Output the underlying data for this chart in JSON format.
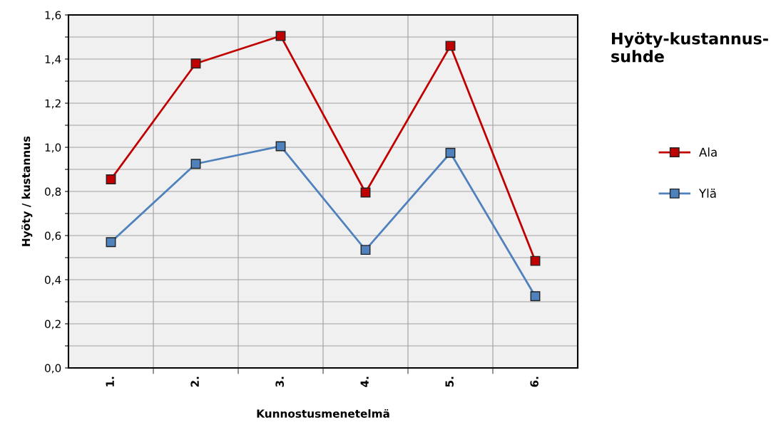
{
  "chart_data": {
    "type": "line",
    "title": "Hyöty-kustannus-\nsuhde",
    "xlabel": "Kunnostusmenetelmä",
    "ylabel": "Hyöty / kustannus",
    "categories": [
      "1.",
      "2.",
      "3.",
      "4.",
      "5.",
      "6."
    ],
    "series": [
      {
        "name": "Ala",
        "color": "#c00000",
        "values": [
          0.855,
          1.38,
          1.505,
          0.795,
          1.46,
          0.485
        ]
      },
      {
        "name": "Ylä",
        "color": "#4f81bd",
        "values": [
          0.57,
          0.925,
          1.005,
          0.535,
          0.975,
          0.325
        ]
      }
    ],
    "ylim": [
      0,
      1.6
    ],
    "yticks": [
      {
        "value": 0,
        "label": "0,0"
      },
      {
        "value": 0.1,
        "label": null
      },
      {
        "value": 0.2,
        "label": "0,2"
      },
      {
        "value": 0.3,
        "label": null
      },
      {
        "value": 0.4,
        "label": "0,4"
      },
      {
        "value": 0.5,
        "label": null
      },
      {
        "value": 0.6,
        "label": "0,6"
      },
      {
        "value": 0.7,
        "label": null
      },
      {
        "value": 0.8,
        "label": "0,8"
      },
      {
        "value": 0.9,
        "label": null
      },
      {
        "value": 1.0,
        "label": "1,0"
      },
      {
        "value": 1.1,
        "label": null
      },
      {
        "value": 1.2,
        "label": "1,2"
      },
      {
        "value": 1.3,
        "label": null
      },
      {
        "value": 1.4,
        "label": "1,4"
      },
      {
        "value": 1.5,
        "label": null
      },
      {
        "value": 1.6,
        "label": "1,6"
      }
    ],
    "grid": true,
    "legend": "right",
    "marker": "square",
    "line_style": "solid"
  }
}
